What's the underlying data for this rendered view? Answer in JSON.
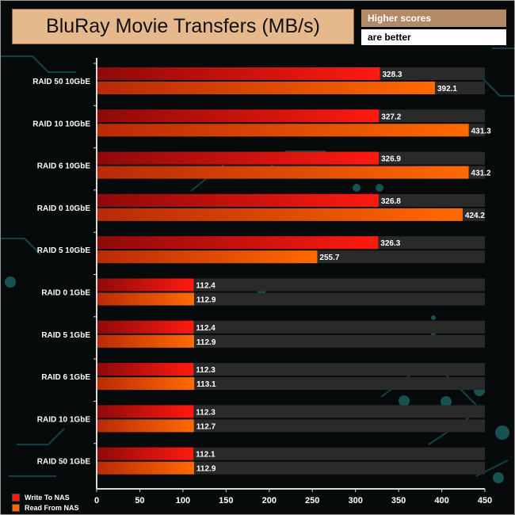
{
  "header": {
    "title": "BluRay Movie Transfers (MB/s)",
    "note_line1": "Higher scores",
    "note_line2": "are better"
  },
  "colors": {
    "write_start": "#8e0a0a",
    "write_end": "#ff1a10",
    "read_start": "#b82a08",
    "read_end": "#ff6a00",
    "track": "#2a2a2a",
    "background": "#070a0a",
    "circuit": "#1f6f72"
  },
  "chart_data": {
    "type": "bar",
    "orientation": "horizontal",
    "title": "BluRay Movie Transfers (MB/s)",
    "categories": [
      "RAID 50 10GbE",
      "RAID 10 10GbE",
      "RAID 6 10GbE",
      "RAID 0 10GbE",
      "RAID 5 10GbE",
      "RAID 0 1GbE",
      "RAID 5 1GbE",
      "RAID 6 1GbE",
      "RAID 10 1GbE",
      "RAID 50 1GbE"
    ],
    "series": [
      {
        "name": "Write To NAS",
        "values": [
          328.3,
          327.2,
          326.9,
          326.8,
          326.3,
          112.4,
          112.4,
          112.3,
          112.3,
          112.1
        ]
      },
      {
        "name": "Read From NAS",
        "values": [
          392.1,
          431.3,
          431.2,
          424.2,
          255.7,
          112.9,
          112.9,
          113.1,
          112.7,
          112.9
        ]
      }
    ],
    "xlim": [
      0,
      450
    ],
    "xticks": [
      0,
      50,
      100,
      150,
      200,
      250,
      300,
      350,
      400,
      450
    ],
    "track_max": 450,
    "legend_position": "bottom-left",
    "grid": false
  }
}
